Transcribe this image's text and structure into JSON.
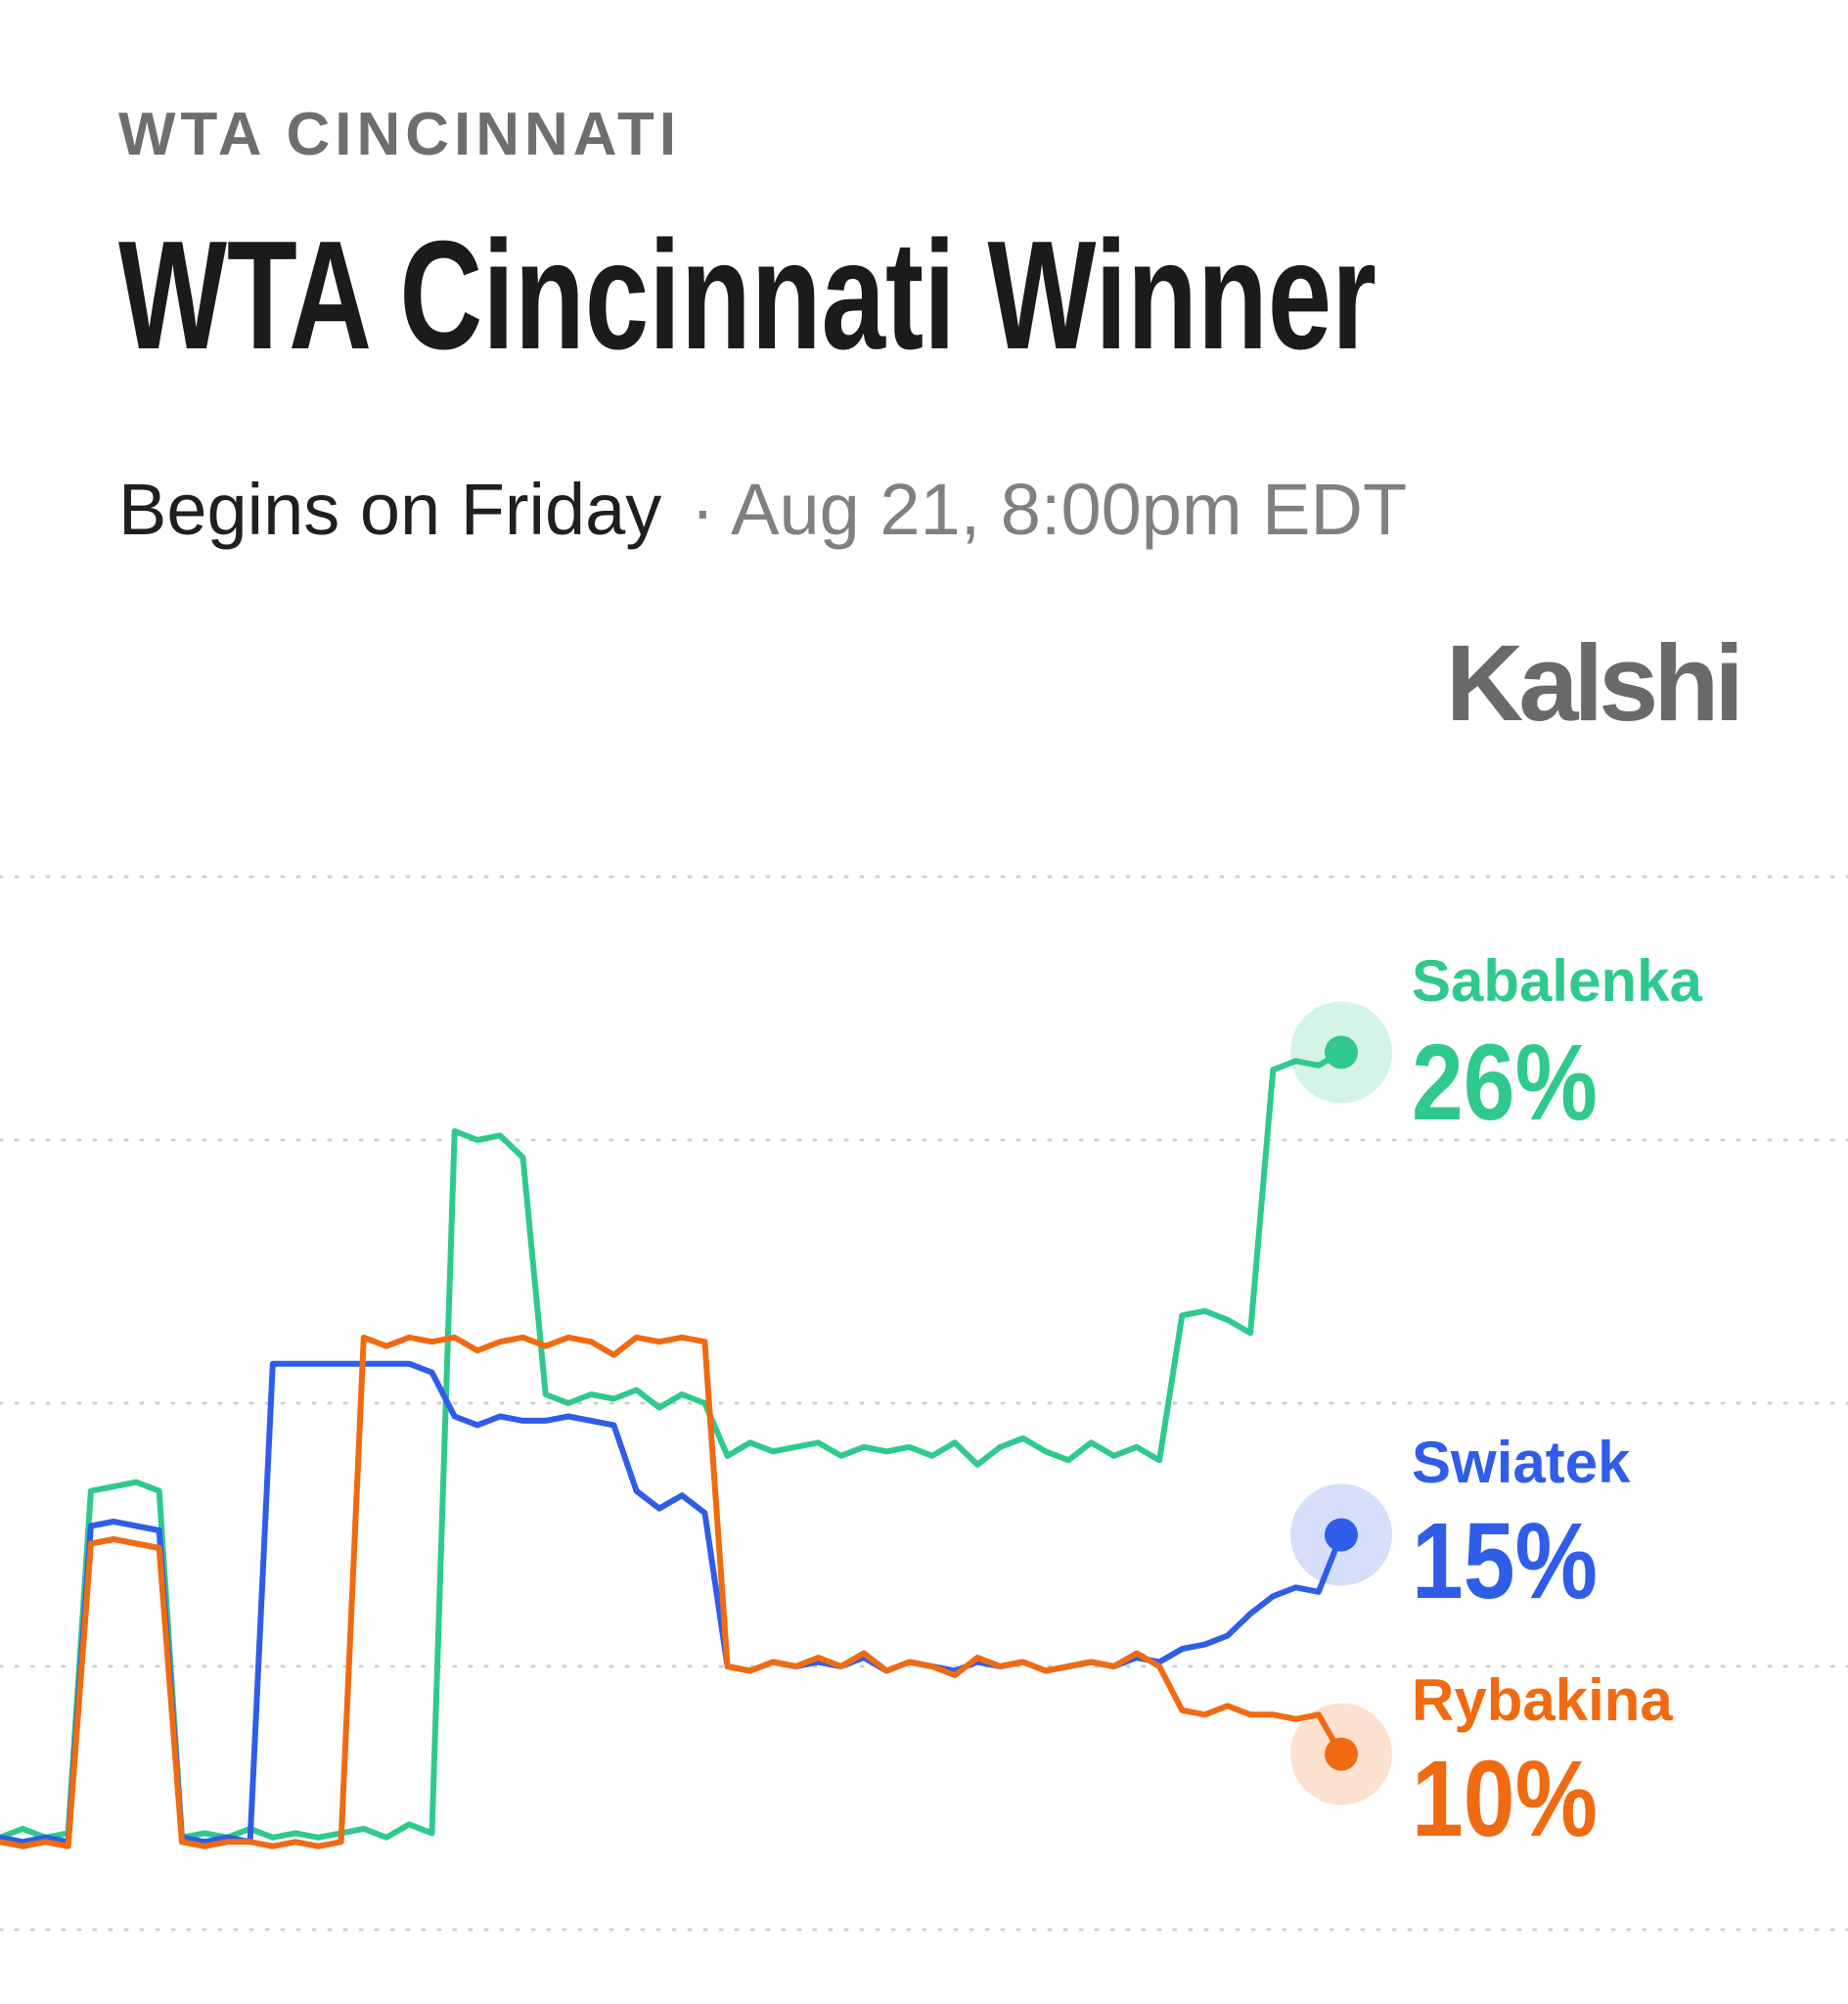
{
  "header": {
    "kicker": "WTA CINCINNATI",
    "title": "WTA Cincinnati Winner",
    "subtitle_day": "Begins on Friday",
    "subtitle_date": "· Aug 21, 8:00pm EDT",
    "brand": "Kalshi"
  },
  "chart_data": {
    "type": "line",
    "ylim": [
      6,
      30
    ],
    "yticks": [
      6,
      12,
      18,
      24,
      30
    ],
    "grid": true,
    "series": [
      {
        "name": "Sabalenka",
        "color": "#2fc98e",
        "values": [
          8.1,
          8.3,
          8.1,
          8.2,
          16.0,
          16.1,
          16.2,
          16.0,
          8.1,
          8.2,
          8.1,
          8.3,
          8.1,
          8.2,
          8.1,
          8.2,
          8.3,
          8.1,
          8.4,
          8.2,
          24.2,
          24.0,
          24.1,
          23.6,
          18.2,
          18.0,
          18.2,
          18.1,
          18.3,
          17.9,
          18.2,
          18.0,
          16.8,
          17.1,
          16.9,
          17.0,
          17.1,
          16.8,
          17.0,
          16.9,
          17.0,
          16.8,
          17.1,
          16.6,
          17.0,
          17.2,
          16.9,
          16.7,
          17.1,
          16.8,
          17.0,
          16.7,
          20.0,
          20.1,
          19.9,
          19.6,
          25.6,
          25.8,
          25.7,
          26
        ],
        "value_labels": [
          null,
          null,
          null,
          null,
          null,
          null,
          null,
          null,
          null,
          null,
          null,
          null,
          null,
          null,
          null,
          null,
          null,
          null,
          null,
          null,
          null,
          null,
          null,
          null,
          null,
          null,
          null,
          null,
          null,
          null,
          null,
          null,
          null,
          null,
          null,
          null,
          null,
          null,
          null,
          null,
          null,
          null,
          null,
          null,
          null,
          null,
          null,
          null,
          null,
          null,
          null,
          null,
          null,
          null,
          null,
          null,
          null,
          null,
          null,
          "26%"
        ]
      },
      {
        "name": "Swiatek",
        "color": "#2f5de8",
        "values": [
          8.1,
          8.0,
          8.1,
          8.0,
          15.2,
          15.3,
          15.2,
          15.1,
          8.1,
          8.0,
          8.1,
          8.0,
          18.9,
          18.9,
          18.9,
          18.9,
          18.9,
          18.9,
          18.9,
          18.7,
          17.7,
          17.5,
          17.7,
          17.6,
          17.6,
          17.7,
          17.6,
          17.5,
          16.0,
          15.6,
          15.9,
          15.5,
          12.0,
          11.9,
          12.1,
          12.0,
          12.1,
          12.0,
          12.2,
          11.9,
          12.1,
          12.0,
          11.9,
          12.1,
          12.0,
          12.1,
          11.9,
          12.0,
          12.1,
          12.0,
          12.2,
          12.1,
          12.4,
          12.5,
          12.7,
          13.2,
          13.6,
          13.8,
          13.7,
          15
        ],
        "value_labels": [
          null,
          null,
          null,
          null,
          null,
          null,
          null,
          null,
          null,
          null,
          null,
          null,
          null,
          null,
          null,
          null,
          null,
          null,
          null,
          null,
          null,
          null,
          null,
          null,
          null,
          null,
          null,
          null,
          null,
          null,
          null,
          null,
          null,
          null,
          null,
          null,
          null,
          null,
          null,
          null,
          null,
          null,
          null,
          null,
          null,
          null,
          null,
          null,
          null,
          null,
          null,
          null,
          null,
          null,
          null,
          null,
          null,
          null,
          null,
          "15%"
        ]
      },
      {
        "name": "Rybakina",
        "color": "#f06a12",
        "values": [
          8.0,
          7.9,
          8.0,
          7.9,
          14.8,
          14.9,
          14.8,
          14.7,
          8.0,
          7.9,
          8.0,
          8.0,
          7.9,
          8.0,
          7.9,
          8.0,
          19.5,
          19.3,
          19.5,
          19.4,
          19.5,
          19.2,
          19.4,
          19.5,
          19.3,
          19.5,
          19.4,
          19.1,
          19.5,
          19.4,
          19.5,
          19.4,
          12.0,
          11.9,
          12.1,
          12.0,
          12.2,
          12.0,
          12.3,
          11.9,
          12.1,
          12.0,
          11.8,
          12.2,
          12.0,
          12.1,
          11.9,
          12.0,
          12.1,
          12.0,
          12.3,
          12.0,
          11.0,
          10.9,
          11.1,
          10.9,
          10.9,
          10.8,
          10.9,
          10
        ],
        "value_labels": [
          null,
          null,
          null,
          null,
          null,
          null,
          null,
          null,
          null,
          null,
          null,
          null,
          null,
          null,
          null,
          null,
          null,
          null,
          null,
          null,
          null,
          null,
          null,
          null,
          null,
          null,
          null,
          null,
          null,
          null,
          null,
          null,
          null,
          null,
          null,
          null,
          null,
          null,
          null,
          null,
          null,
          null,
          null,
          null,
          null,
          null,
          null,
          null,
          null,
          null,
          null,
          null,
          null,
          null,
          null,
          null,
          null,
          null,
          null,
          "10%"
        ]
      }
    ]
  }
}
